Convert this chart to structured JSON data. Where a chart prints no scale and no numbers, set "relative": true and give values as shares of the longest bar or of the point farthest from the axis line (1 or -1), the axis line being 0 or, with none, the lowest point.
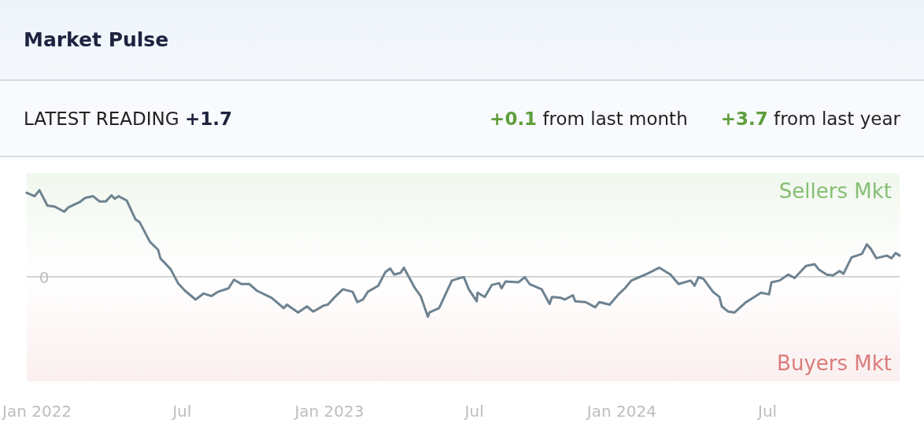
{
  "chart_data": {
    "type": "line",
    "title": "Market Pulse",
    "relative": true,
    "annotations": [
      "LATEST READING +1.7",
      "+0.1 from last month",
      "+3.7 from last year"
    ],
    "x": [
      "2021-12-19",
      "2021-12-29",
      "2022-01-04",
      "2022-01-14",
      "2022-01-23",
      "2022-02-04",
      "2022-02-09",
      "2022-02-23",
      "2022-03-02",
      "2022-03-12",
      "2022-03-20",
      "2022-03-28",
      "2022-04-04",
      "2022-04-08",
      "2022-04-13",
      "2022-04-23",
      "2022-05-04",
      "2022-05-09",
      "2022-05-22",
      "2022-06-01",
      "2022-06-04",
      "2022-06-17",
      "2022-06-26",
      "2022-07-05",
      "2022-07-18",
      "2022-07-28",
      "2022-08-07",
      "2022-08-15",
      "2022-08-28",
      "2022-09-04",
      "2022-09-13",
      "2022-09-23",
      "2022-10-03",
      "2022-10-21",
      "2022-11-05",
      "2022-11-09",
      "2022-11-23",
      "2022-12-04",
      "2022-12-12",
      "2022-12-25",
      "2022-12-30",
      "2023-01-09",
      "2023-01-18",
      "2023-01-30",
      "2023-02-05",
      "2023-02-12",
      "2023-02-18",
      "2023-03-03",
      "2023-03-12",
      "2023-03-18",
      "2023-03-23",
      "2023-03-31",
      "2023-04-04",
      "2023-04-18",
      "2023-04-25",
      "2023-05-04",
      "2023-05-06",
      "2023-05-18",
      "2023-06-03",
      "2023-06-13",
      "2023-06-18",
      "2023-06-24",
      "2023-07-04",
      "2023-07-05",
      "2023-07-14",
      "2023-07-23",
      "2023-08-01",
      "2023-08-04",
      "2023-08-09",
      "2023-08-25",
      "2023-09-02",
      "2023-09-08",
      "2023-09-23",
      "2023-10-03",
      "2023-10-06",
      "2023-10-17",
      "2023-10-22",
      "2023-11-01",
      "2023-11-04",
      "2023-11-17",
      "2023-11-29",
      "2023-12-04",
      "2023-12-17",
      "2023-12-28",
      "2024-01-05",
      "2024-01-13",
      "2024-01-23",
      "2024-02-02",
      "2024-02-17",
      "2024-03-02",
      "2024-03-12",
      "2024-03-27",
      "2024-04-01",
      "2024-04-06",
      "2024-04-12",
      "2024-04-24",
      "2024-05-02",
      "2024-05-05",
      "2024-05-13",
      "2024-05-21",
      "2024-06-03",
      "2024-06-23",
      "2024-07-03",
      "2024-07-06",
      "2024-07-16",
      "2024-07-27",
      "2024-08-04",
      "2024-08-18",
      "2024-08-29",
      "2024-09-03",
      "2024-09-13",
      "2024-09-21",
      "2024-09-29",
      "2024-10-04",
      "2024-10-14",
      "2024-10-27",
      "2024-11-02",
      "2024-11-07",
      "2024-11-14",
      "2024-11-27",
      "2024-12-03",
      "2024-12-08",
      "2024-12-13"
    ],
    "series": [
      {
        "color": "#6e8290",
        "values": [
          0.97,
          0.93,
          1.0,
          0.82,
          0.81,
          0.75,
          0.8,
          0.86,
          0.91,
          0.93,
          0.87,
          0.87,
          0.94,
          0.9,
          0.93,
          0.88,
          0.66,
          0.63,
          0.4,
          0.31,
          0.21,
          0.08,
          -0.08,
          -0.17,
          -0.27,
          -0.2,
          -0.23,
          -0.18,
          -0.14,
          -0.04,
          -0.09,
          -0.09,
          -0.17,
          -0.25,
          -0.37,
          -0.33,
          -0.42,
          -0.35,
          -0.41,
          -0.34,
          -0.33,
          -0.23,
          -0.15,
          -0.18,
          -0.3,
          -0.27,
          -0.18,
          -0.11,
          0.05,
          0.09,
          0.02,
          0.04,
          0.1,
          -0.14,
          -0.23,
          -0.47,
          -0.42,
          -0.37,
          -0.05,
          -0.02,
          -0.01,
          -0.15,
          -0.29,
          -0.19,
          -0.24,
          -0.1,
          -0.08,
          -0.14,
          -0.06,
          -0.07,
          -0.01,
          -0.09,
          -0.15,
          -0.32,
          -0.24,
          -0.25,
          -0.27,
          -0.22,
          -0.29,
          -0.3,
          -0.36,
          -0.3,
          -0.33,
          -0.21,
          -0.14,
          -0.05,
          -0.01,
          0.03,
          0.1,
          0.02,
          -0.09,
          -0.05,
          -0.11,
          -0.01,
          -0.03,
          -0.18,
          -0.24,
          -0.35,
          -0.41,
          -0.42,
          -0.31,
          -0.19,
          -0.21,
          -0.07,
          -0.05,
          0.02,
          -0.02,
          0.12,
          0.14,
          0.08,
          0.02,
          0.01,
          0.06,
          0.03,
          0.22,
          0.26,
          0.37,
          0.32,
          0.21,
          0.24,
          0.21,
          0.27,
          0.24
        ]
      }
    ],
    "xlim": [
      "2021-12-19",
      "2024-12-13"
    ],
    "xticks": [
      {
        "value": "2022-01-01",
        "label": "Jan 2022"
      },
      {
        "value": "2022-07-01",
        "label": "Jul"
      },
      {
        "value": "2023-01-01",
        "label": "Jan 2023"
      },
      {
        "value": "2023-07-01",
        "label": "Jul"
      },
      {
        "value": "2024-01-01",
        "label": "Jan 2024"
      },
      {
        "value": "2024-07-01",
        "label": "Jul"
      }
    ],
    "ref_lines": [
      {
        "axis": "y",
        "value": 0,
        "label": "0",
        "color": "#d4d4d4"
      }
    ],
    "bands": [
      {
        "axis": "y",
        "from": 0,
        "to": 1.2,
        "label": "Sellers Mkt",
        "color": "#86bf73"
      },
      {
        "axis": "y",
        "from": -1.22,
        "to": 0,
        "label": "Buyers Mkt",
        "color": "#db7c7c"
      }
    ],
    "grid": false,
    "marker": "none",
    "line_style": "solid"
  }
}
